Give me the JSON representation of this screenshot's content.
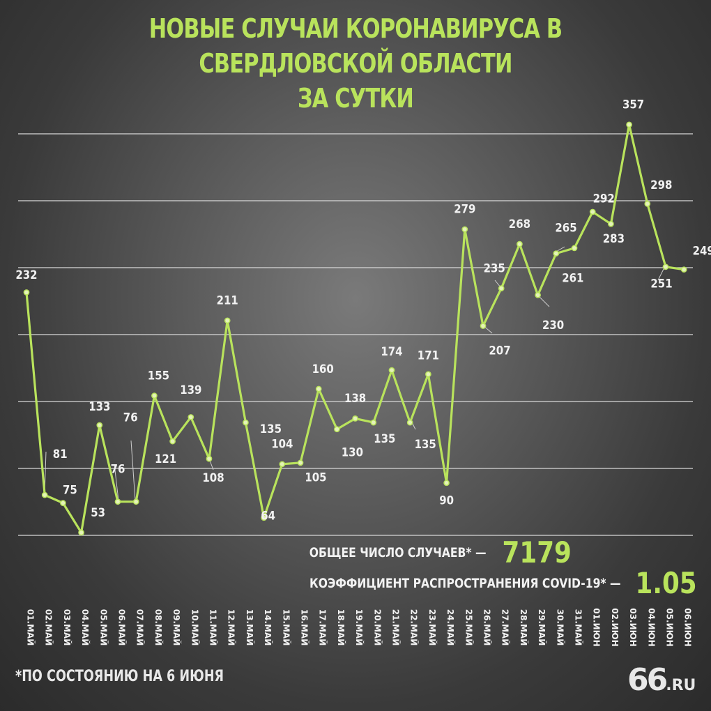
{
  "title_line1": "НОВЫЕ СЛУЧАИ КОРОНАВИРУСА В СВЕРДЛОВСКОЙ ОБЛАСТИ",
  "title_line2": "ЗА СУТКИ",
  "stats": {
    "total_label": "ОБЩЕЕ ЧИСЛО СЛУЧАЕВ* —",
    "total_value": "7179",
    "coef_label": "КОЭФФИЦИЕНТ РАСПРОСТРАНЕНИЯ COVID-19* —",
    "coef_value": "1.05"
  },
  "footnote": "*ПО СОСТОЯНИЮ НА 6 ИЮНЯ",
  "logo": {
    "number": "66",
    "suffix": ".RU"
  },
  "colors": {
    "accent": "#b9e35c",
    "text": "#f2f2f2",
    "grid": "#d8d8d8"
  },
  "chart_data": {
    "type": "line",
    "title": "НОВЫЕ СЛУЧАИ КОРОНАВИРУСА В СВЕРДЛОВСКОЙ ОБЛАСТИ ЗА СУТКИ",
    "categories": [
      "01.МАЙ",
      "02.МАЙ",
      "03.МАЙ",
      "04.МАЙ",
      "05.МАЙ",
      "06.МАЙ",
      "07.МАЙ",
      "08.МАЙ",
      "09.МАЙ",
      "10.МАЙ",
      "11.МАЙ",
      "12.МАЙ",
      "13.МАЙ",
      "14.МАЙ",
      "15.МАЙ",
      "16.МАЙ",
      "17.МАЙ",
      "18.МАЙ",
      "19.МАЙ",
      "20.МАЙ",
      "21.МАЙ",
      "22.МАЙ",
      "23.МАЙ",
      "24.МАЙ",
      "25.МАЙ",
      "26.МАЙ",
      "27.МАЙ",
      "28.МАЙ",
      "29.МАЙ",
      "30.МАЙ",
      "31.МАЙ",
      "01.ИЮН",
      "02.ИЮН",
      "03.ИЮН",
      "04.ИЮН",
      "05.ИЮН",
      "06.ИЮН"
    ],
    "values": [
      232,
      81,
      75,
      53,
      133,
      76,
      76,
      155,
      121,
      139,
      108,
      211,
      135,
      64,
      104,
      105,
      160,
      130,
      138,
      135,
      174,
      135,
      171,
      90,
      279,
      207,
      235,
      268,
      230,
      261,
      265,
      292,
      283,
      357,
      298,
      251,
      249
    ],
    "ylim": [
      50,
      380
    ],
    "grid": true
  }
}
